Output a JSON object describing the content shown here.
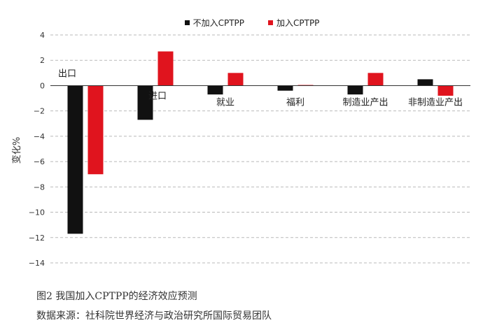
{
  "chart_data": {
    "type": "bar",
    "categories": [
      "出口",
      "进口",
      "就业",
      "福利",
      "制造业产出",
      "非制造业产出"
    ],
    "series": [
      {
        "name": "不加入CPTPP",
        "color": "#111111",
        "values": [
          -11.7,
          -2.7,
          -0.7,
          -0.4,
          -0.7,
          0.5
        ]
      },
      {
        "name": "加入CPTPP",
        "color": "#e0141e",
        "values": [
          -7.0,
          2.7,
          1.0,
          0.05,
          1.0,
          -0.8
        ]
      }
    ],
    "ylabel": "变化%",
    "ylim": [
      -14,
      4
    ],
    "yticks": [
      4,
      2,
      0,
      -2,
      -4,
      -6,
      -8,
      -10,
      -12,
      -14
    ],
    "ytick_labels": [
      "4",
      "2",
      "0",
      "−2",
      "−4",
      "−6",
      "−8",
      "−10",
      "−12",
      "−14"
    ],
    "grid": "horizontal-dashed",
    "legend": "top-center"
  },
  "captions": {
    "figure": "图2  我国加入CPTPP的经济效应预测",
    "source": "数据来源：社科院世界经济与政治研究所国际贸易团队"
  }
}
